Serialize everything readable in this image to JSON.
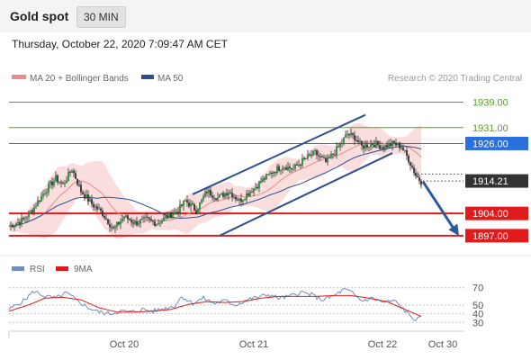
{
  "header": {
    "title": "Gold spot",
    "timeframe": "30 MIN"
  },
  "timestamp": "Thursday, October 22, 2020 7:09:47 AM CET",
  "colors": {
    "resistance": "#5a9e1f",
    "pivot": "#2a6fdb",
    "support": "#e01b1b",
    "current": "#333333",
    "ma50": "#2c4f8f",
    "bollinger": "#f5b5b5",
    "channel": "#2c4f8f",
    "rsi": "#6d8ebf",
    "rsi_ma": "#e01b1b"
  },
  "chart_data": [
    {
      "type": "candlestick",
      "legend": [
        {
          "label": "MA 20 + Bollinger Bands",
          "color": "#f08a8a"
        },
        {
          "label": "MA 50",
          "color": "#2c4f8f"
        }
      ],
      "credit": "Research © 2020 Trading Central",
      "ylim": [
        1893,
        1940
      ],
      "x_ticks": [
        "Oct 20",
        "Oct 21",
        "Oct 22",
        "Oct 30"
      ],
      "levels": [
        {
          "value": 1939.0,
          "label": "1939.00",
          "kind": "resistance"
        },
        {
          "value": 1931.0,
          "label": "1931.00",
          "kind": "resistance"
        },
        {
          "value": 1926.0,
          "label": "1926.00",
          "kind": "pivot"
        },
        {
          "value": 1914.21,
          "label": "1914.21",
          "kind": "current"
        },
        {
          "value": 1904.0,
          "label": "1904.00",
          "kind": "support"
        },
        {
          "value": 1897.0,
          "label": "1897.00",
          "kind": "support"
        }
      ],
      "price_anchors": [
        [
          0,
          1900
        ],
        [
          8,
          1902
        ],
        [
          14,
          1906
        ],
        [
          20,
          1911
        ],
        [
          26,
          1915
        ],
        [
          30,
          1913
        ],
        [
          35,
          1918
        ],
        [
          40,
          1911
        ],
        [
          46,
          1907
        ],
        [
          52,
          1904
        ],
        [
          58,
          1899
        ],
        [
          64,
          1903
        ],
        [
          70,
          1901
        ],
        [
          76,
          1902
        ],
        [
          82,
          1901
        ],
        [
          88,
          1903
        ],
        [
          94,
          1905
        ],
        [
          98,
          1908
        ],
        [
          104,
          1905
        ],
        [
          110,
          1911
        ],
        [
          116,
          1909
        ],
        [
          122,
          1911
        ],
        [
          128,
          1908
        ],
        [
          134,
          1911
        ],
        [
          140,
          1914
        ],
        [
          146,
          1917
        ],
        [
          152,
          1919
        ],
        [
          158,
          1918
        ],
        [
          164,
          1921
        ],
        [
          170,
          1923
        ],
        [
          176,
          1920
        ],
        [
          182,
          1924
        ],
        [
          188,
          1929
        ],
        [
          192,
          1928
        ],
        [
          196,
          1925
        ],
        [
          202,
          1926
        ],
        [
          208,
          1925
        ],
        [
          214,
          1926
        ],
        [
          218,
          1925
        ],
        [
          222,
          1921
        ],
        [
          226,
          1916
        ],
        [
          229,
          1914
        ]
      ],
      "channel": {
        "upper": [
          [
            102,
            1910
          ],
          [
            198,
            1935
          ]
        ],
        "lower": [
          [
            117,
            1897
          ],
          [
            213,
            1923
          ]
        ]
      },
      "projection": {
        "from": [
          229,
          1914
        ],
        "to": [
          250,
          1897
        ]
      }
    },
    {
      "type": "line",
      "legend": [
        {
          "label": "RSI",
          "color": "#6d8ebf"
        },
        {
          "label": "9MA",
          "color": "#e01b1b"
        }
      ],
      "ylim": [
        22,
        78
      ],
      "y_ticks": [
        70,
        50,
        40,
        30
      ],
      "rsi_anchors": [
        [
          0,
          45
        ],
        [
          8,
          55
        ],
        [
          14,
          66
        ],
        [
          20,
          60
        ],
        [
          26,
          58
        ],
        [
          32,
          64
        ],
        [
          38,
          55
        ],
        [
          44,
          47
        ],
        [
          50,
          42
        ],
        [
          56,
          40
        ],
        [
          62,
          43
        ],
        [
          68,
          42
        ],
        [
          74,
          45
        ],
        [
          80,
          43
        ],
        [
          86,
          46
        ],
        [
          92,
          49
        ],
        [
          96,
          60
        ],
        [
          102,
          52
        ],
        [
          108,
          58
        ],
        [
          114,
          52
        ],
        [
          120,
          55
        ],
        [
          126,
          50
        ],
        [
          132,
          56
        ],
        [
          138,
          59
        ],
        [
          144,
          62
        ],
        [
          150,
          58
        ],
        [
          156,
          60
        ],
        [
          162,
          65
        ],
        [
          168,
          62
        ],
        [
          174,
          56
        ],
        [
          180,
          60
        ],
        [
          186,
          68
        ],
        [
          190,
          65
        ],
        [
          196,
          55
        ],
        [
          202,
          58
        ],
        [
          208,
          53
        ],
        [
          214,
          55
        ],
        [
          218,
          48
        ],
        [
          222,
          39
        ],
        [
          226,
          33
        ],
        [
          229,
          35
        ]
      ],
      "ma_anchors": [
        [
          0,
          43
        ],
        [
          12,
          51
        ],
        [
          20,
          58
        ],
        [
          30,
          59
        ],
        [
          40,
          56
        ],
        [
          50,
          47
        ],
        [
          60,
          42
        ],
        [
          70,
          42
        ],
        [
          80,
          43
        ],
        [
          90,
          45
        ],
        [
          100,
          51
        ],
        [
          110,
          54
        ],
        [
          120,
          53
        ],
        [
          130,
          54
        ],
        [
          140,
          58
        ],
        [
          150,
          60
        ],
        [
          160,
          60
        ],
        [
          170,
          60
        ],
        [
          180,
          61
        ],
        [
          190,
          61
        ],
        [
          200,
          58
        ],
        [
          210,
          54
        ],
        [
          220,
          45
        ],
        [
          229,
          37
        ]
      ]
    }
  ]
}
